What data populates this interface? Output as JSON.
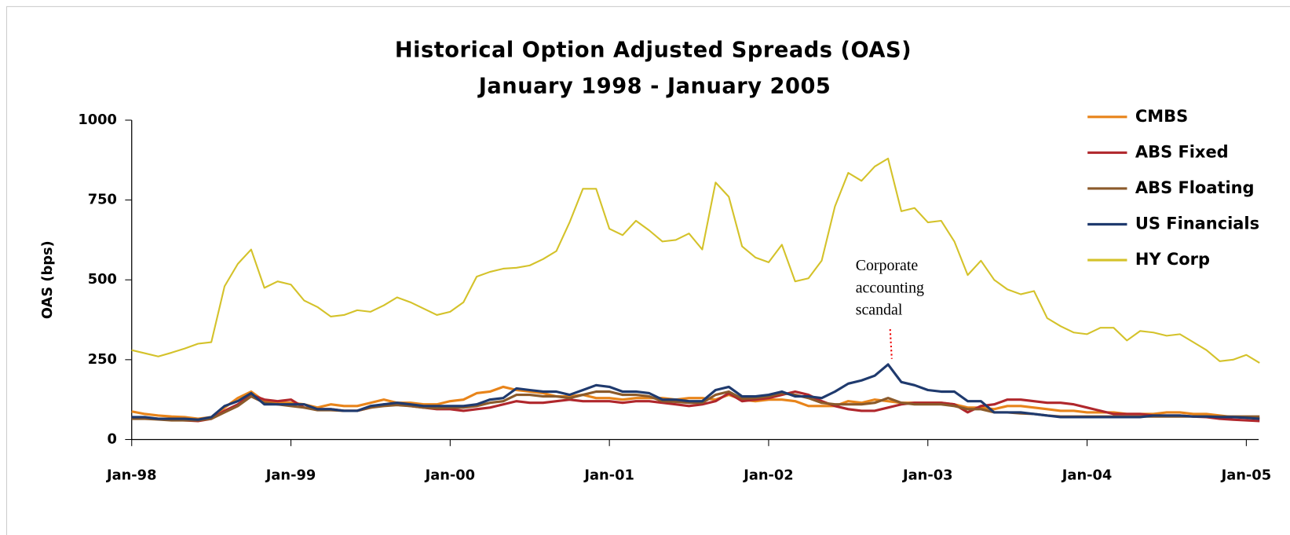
{
  "chart_data": {
    "type": "line",
    "title": "Historical Option Adjusted Spreads (OAS)",
    "subtitle": "January 1998 - January 2005",
    "y_label": "OAS (bps)",
    "categories": [
      "Jan-98",
      null,
      null,
      null,
      null,
      null,
      null,
      null,
      null,
      null,
      null,
      null,
      "Jan-99",
      null,
      null,
      null,
      null,
      null,
      null,
      null,
      null,
      null,
      null,
      null,
      "Jan-00",
      null,
      null,
      null,
      null,
      null,
      null,
      null,
      null,
      null,
      null,
      null,
      "Jan-01",
      null,
      null,
      null,
      null,
      null,
      null,
      null,
      null,
      null,
      null,
      null,
      "Jan-02",
      null,
      null,
      null,
      null,
      null,
      null,
      null,
      null,
      null,
      null,
      null,
      "Jan-03",
      null,
      null,
      null,
      null,
      null,
      null,
      null,
      null,
      null,
      null,
      null,
      "Jan-04",
      null,
      null,
      null,
      null,
      null,
      null,
      null,
      null,
      null,
      null,
      null,
      "Jan-05",
      null
    ],
    "ylim": [
      0,
      1000
    ],
    "yticks": [
      0,
      250,
      500,
      750,
      1000
    ],
    "grid": false,
    "legend": "right",
    "annotation": [
      "Corporate",
      "accounting",
      "scandal"
    ],
    "series": [
      {
        "name": "CMBS",
        "color": "#e8841a",
        "values": [
          88,
          80,
          75,
          72,
          70,
          65,
          70,
          100,
          130,
          150,
          120,
          115,
          115,
          110,
          100,
          110,
          105,
          105,
          115,
          125,
          115,
          115,
          110,
          110,
          120,
          125,
          145,
          150,
          165,
          155,
          150,
          145,
          135,
          135,
          140,
          130,
          130,
          125,
          130,
          130,
          130,
          125,
          130,
          130,
          125,
          140,
          125,
          120,
          125,
          125,
          120,
          105,
          105,
          105,
          120,
          115,
          125,
          120,
          115,
          115,
          115,
          115,
          110,
          100,
          100,
          95,
          105,
          105,
          100,
          95,
          90,
          90,
          85,
          85,
          85,
          80,
          80,
          80,
          85,
          85,
          80,
          80,
          75,
          70,
          70,
          65
        ]
      },
      {
        "name": "ABS Fixed",
        "color": "#b0272c",
        "values": [
          70,
          68,
          65,
          62,
          60,
          58,
          65,
          90,
          110,
          140,
          125,
          120,
          125,
          100,
          95,
          95,
          90,
          90,
          100,
          110,
          110,
          105,
          100,
          95,
          95,
          90,
          95,
          100,
          110,
          120,
          115,
          115,
          120,
          125,
          120,
          120,
          120,
          115,
          120,
          120,
          115,
          110,
          105,
          110,
          120,
          145,
          120,
          125,
          130,
          140,
          150,
          140,
          120,
          105,
          95,
          90,
          90,
          100,
          110,
          115,
          115,
          115,
          110,
          85,
          105,
          110,
          125,
          125,
          120,
          115,
          115,
          110,
          100,
          90,
          80,
          80,
          80,
          75,
          75,
          75,
          72,
          70,
          65,
          62,
          60,
          58
        ]
      },
      {
        "name": "ABS Floating",
        "color": "#8b5a2b",
        "values": [
          65,
          65,
          63,
          60,
          60,
          60,
          65,
          85,
          105,
          135,
          115,
          110,
          105,
          100,
          92,
          92,
          90,
          90,
          100,
          105,
          108,
          105,
          100,
          98,
          100,
          100,
          105,
          115,
          120,
          140,
          140,
          135,
          135,
          130,
          140,
          150,
          150,
          140,
          140,
          135,
          120,
          118,
          115,
          115,
          140,
          150,
          128,
          130,
          135,
          145,
          140,
          130,
          115,
          110,
          110,
          110,
          115,
          130,
          115,
          110,
          110,
          110,
          105,
          95,
          95,
          85,
          85,
          82,
          80,
          75,
          72,
          72,
          72,
          72,
          72,
          72,
          72,
          72,
          72,
          72,
          72,
          72,
          72,
          72,
          72,
          72
        ]
      },
      {
        "name": "US Financials",
        "color": "#1f3a6e",
        "values": [
          70,
          70,
          65,
          65,
          65,
          62,
          70,
          105,
          120,
          145,
          110,
          110,
          110,
          110,
          95,
          95,
          90,
          90,
          105,
          110,
          115,
          110,
          105,
          105,
          105,
          105,
          110,
          125,
          130,
          160,
          155,
          150,
          150,
          140,
          155,
          170,
          165,
          150,
          150,
          145,
          125,
          125,
          120,
          120,
          155,
          165,
          135,
          135,
          140,
          150,
          135,
          135,
          130,
          150,
          175,
          185,
          200,
          235,
          180,
          170,
          155,
          150,
          150,
          120,
          120,
          85,
          85,
          85,
          80,
          75,
          70,
          70,
          70,
          70,
          70,
          70,
          70,
          75,
          75,
          75,
          72,
          72,
          70,
          70,
          68,
          65
        ]
      },
      {
        "name": "HY Corp",
        "color": "#d4c22a",
        "values": [
          280,
          270,
          260,
          272,
          285,
          300,
          305,
          480,
          550,
          595,
          475,
          495,
          485,
          435,
          415,
          385,
          390,
          405,
          400,
          420,
          445,
          430,
          410,
          390,
          400,
          430,
          510,
          525,
          535,
          538,
          545,
          565,
          590,
          680,
          785,
          785,
          660,
          640,
          685,
          655,
          620,
          625,
          645,
          595,
          805,
          760,
          605,
          570,
          555,
          610,
          495,
          505,
          560,
          730,
          835,
          810,
          855,
          880,
          715,
          725,
          680,
          685,
          620,
          515,
          560,
          500,
          470,
          455,
          465,
          380,
          355,
          335,
          330,
          350,
          350,
          310,
          340,
          335,
          325,
          330,
          305,
          280,
          245,
          250,
          265,
          240
        ]
      }
    ]
  }
}
